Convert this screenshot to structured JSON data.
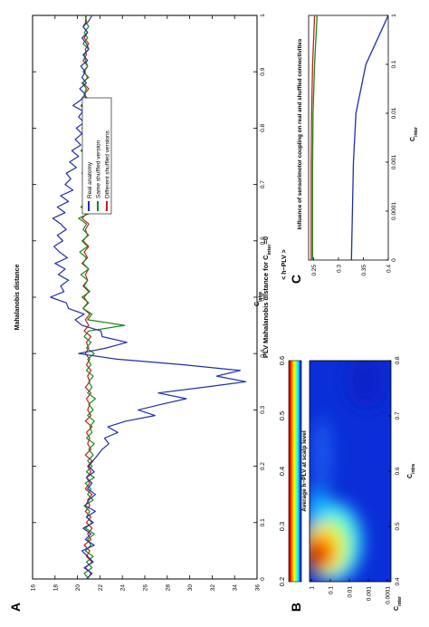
{
  "panels": {
    "A": {
      "letter": "A",
      "title_main": "PLV Mahalanobis distance for C",
      "title_sub": "inter",
      "title_tail": "=0",
      "xlabel_main": "C",
      "xlabel_sub": "intra",
      "ylabel": "Mahalanobis distance",
      "legend": [
        "Real anatomy",
        "Same shuffled version",
        "Different shuffled versions"
      ]
    },
    "B": {
      "letter": "B",
      "title": "Average h−PLV at scalp level",
      "xlabel_main": "C",
      "xlabel_sub": "intra",
      "ylabel_main": "C",
      "ylabel_sub": "inter",
      "colorbar_ticks": [
        "0.6",
        "0.5",
        "0.4",
        "0.3",
        "0.2"
      ]
    },
    "C": {
      "letter": "C",
      "title": "Influence of sensorimotor coupling on real and shuffled connectivities",
      "xlabel_main": "C",
      "xlabel_sub": "inter",
      "ylabel": "< h−PLV >"
    }
  },
  "colors": {
    "real": "#1f2fa8",
    "same": "#1a8a1a",
    "different": "#c0201a"
  },
  "chart_data": [
    {
      "type": "line",
      "panel": "A",
      "title": "PLV Mahalanobis distance for C_inter=0",
      "xlabel": "C_intra",
      "ylabel": "Mahalanobis distance",
      "xlim": [
        0,
        1
      ],
      "ylim": [
        16,
        36
      ],
      "xticks": [
        "0",
        "0.1",
        "0.2",
        "0.3",
        "0.4",
        "0.5",
        "0.6",
        "0.7",
        "0.8",
        "0.9",
        "1"
      ],
      "yticks": [
        "16",
        "18",
        "20",
        "22",
        "24",
        "26",
        "28",
        "30",
        "32",
        "34",
        "36"
      ],
      "x": [
        0,
        0.01,
        0.02,
        0.03,
        0.04,
        0.05,
        0.06,
        0.07,
        0.08,
        0.09,
        0.1,
        0.11,
        0.12,
        0.13,
        0.14,
        0.15,
        0.16,
        0.17,
        0.18,
        0.19,
        0.2,
        0.21,
        0.22,
        0.23,
        0.24,
        0.25,
        0.26,
        0.27,
        0.28,
        0.29,
        0.3,
        0.31,
        0.32,
        0.33,
        0.34,
        0.35,
        0.36,
        0.37,
        0.38,
        0.39,
        0.4,
        0.41,
        0.42,
        0.43,
        0.44,
        0.45,
        0.46,
        0.47,
        0.48,
        0.49,
        0.5,
        0.51,
        0.52,
        0.53,
        0.54,
        0.55,
        0.56,
        0.57,
        0.58,
        0.59,
        0.6,
        0.61,
        0.62,
        0.63,
        0.64,
        0.65,
        0.66,
        0.67,
        0.68,
        0.69,
        0.7,
        0.71,
        0.72,
        0.73,
        0.74,
        0.75,
        0.76,
        0.77,
        0.78,
        0.79,
        0.8,
        0.81,
        0.82,
        0.83,
        0.84,
        0.85,
        0.86,
        0.87,
        0.88,
        0.89,
        0.9,
        0.91,
        0.92,
        0.93,
        0.94,
        0.95,
        0.96,
        0.97,
        0.98,
        0.99,
        1
      ],
      "series": [
        {
          "name": "Real anatomy",
          "color": "#1f2fa8",
          "values": [
            20.8,
            21.3,
            20.6,
            21.4,
            20.9,
            20.4,
            21.5,
            20.7,
            21.2,
            20.5,
            21.4,
            20.8,
            21.6,
            20.7,
            21.0,
            21.6,
            20.9,
            21.3,
            20.8,
            21.5,
            21.0,
            21.4,
            21.8,
            22.2,
            22.8,
            22.4,
            23.6,
            22.7,
            24.3,
            26.9,
            25.4,
            27.5,
            29.7,
            27.2,
            31.2,
            35.0,
            32.4,
            34.5,
            29.5,
            23.5,
            20.1,
            22.6,
            24.4,
            22.2,
            22.1,
            20.4,
            19.8,
            20.6,
            19.2,
            19.0,
            17.6,
            18.8,
            18.5,
            19.2,
            18.3,
            18.9,
            18.0,
            19.1,
            18.4,
            17.9,
            18.7,
            18.2,
            19.0,
            18.5,
            17.8,
            18.9,
            18.2,
            19.2,
            18.5,
            19.6,
            18.9,
            19.4,
            19.0,
            19.9,
            19.3,
            20.1,
            19.5,
            20.3,
            19.8,
            20.4,
            19.9,
            20.6,
            20.1,
            20.5,
            19.6,
            20.3,
            20.7,
            20.2,
            20.8,
            20.4,
            20.7,
            20.3,
            20.9,
            20.5,
            21.0,
            20.8,
            20.4,
            20.9,
            20.5,
            21.0,
            21.3
          ]
        },
        {
          "name": "Same shuffled version",
          "color": "#1a8a1a",
          "values": [
            21.0,
            20.6,
            21.3,
            20.8,
            21.4,
            20.7,
            21.2,
            20.9,
            21.5,
            20.7,
            21.3,
            20.8,
            21.1,
            20.6,
            21.4,
            20.9,
            21.2,
            20.7,
            21.5,
            20.8,
            21.3,
            20.9,
            21.4,
            21.0,
            21.5,
            20.8,
            21.3,
            21.1,
            21.5,
            20.9,
            21.4,
            21.0,
            21.6,
            20.9,
            21.3,
            21.0,
            21.4,
            20.8,
            21.2,
            20.9,
            21.5,
            20.8,
            21.2,
            20.6,
            21.0,
            24.2,
            20.9,
            21.3,
            20.5,
            21.0,
            20.4,
            21.1,
            20.6,
            20.9,
            20.3,
            21.0,
            20.5,
            20.8,
            20.2,
            20.9,
            20.4,
            21.0,
            20.5,
            20.8,
            20.1,
            21.2,
            20.3,
            21.0,
            20.6,
            20.9,
            20.5,
            21.1,
            20.4,
            20.9,
            20.6,
            21.0,
            20.3,
            21.1,
            20.5,
            20.9,
            20.4,
            21.2,
            20.5,
            20.8,
            20.3,
            21.0,
            20.6,
            20.8,
            20.4,
            21.0,
            20.5,
            20.9,
            20.7,
            20.6,
            21.0,
            20.5,
            20.9,
            20.6,
            21.0,
            20.7,
            20.8
          ]
        },
        {
          "name": "Different shuffled versions",
          "color": "#c0201a",
          "values": [
            20.9,
            21.2,
            20.7,
            21.3,
            20.8,
            21.1,
            20.6,
            21.2,
            20.9,
            21.3,
            20.8,
            21.2,
            20.7,
            21.1,
            20.9,
            21.3,
            20.7,
            21.1,
            20.8,
            21.2,
            20.9,
            21.3,
            20.7,
            21.2,
            20.9,
            21.1,
            20.8,
            21.3,
            20.7,
            21.2,
            20.9,
            21.1,
            20.8,
            21.2,
            20.7,
            21.1,
            20.9,
            21.2,
            20.8,
            21.1,
            20.7,
            21.0,
            20.8,
            21.2,
            20.6,
            21.0,
            20.7,
            21.1,
            20.5,
            20.9,
            20.6,
            21.0,
            20.5,
            20.9,
            20.7,
            21.0,
            20.4,
            20.9,
            20.6,
            21.0,
            20.5,
            20.9,
            20.7,
            21.0,
            20.4,
            20.9,
            20.6,
            21.0,
            20.5,
            20.8,
            20.7,
            21.0,
            20.4,
            20.9,
            20.6,
            21.0,
            20.5,
            20.8,
            20.7,
            21.0,
            20.5,
            20.9,
            20.6,
            21.0,
            20.4,
            20.8,
            20.6,
            21.0,
            20.5,
            20.9,
            20.6,
            20.9,
            20.5,
            20.8,
            20.7,
            21.0,
            20.6,
            20.9,
            20.5,
            20.8,
            20.7
          ]
        }
      ],
      "legend_position": "upper-middle",
      "grid": false
    },
    {
      "type": "heatmap",
      "panel": "B",
      "title": "Average h−PLV at scalp level",
      "xlabel": "C_intra",
      "ylabel": "C_inter",
      "xticks": [
        "0.4",
        "0.5",
        "0.6",
        "0.7",
        "0.8"
      ],
      "xlim": [
        0.4,
        0.8
      ],
      "yticks": [
        "0.0001",
        "0.001",
        "0.01",
        "0.1",
        "1"
      ],
      "colorbar_ticks": [
        "0.6",
        "0.5",
        "0.4",
        "0.3",
        "0.2"
      ],
      "clim": [
        0.2,
        0.6
      ],
      "description_values": "high (~0.6) near C_intra=0.4 and C_inter around 0.01–1, decreasing to ~0.2 for C_intra above ~0.55"
    },
    {
      "type": "line",
      "panel": "C",
      "title": "Influence of sensorimotor coupling on real and shuffled connectivities",
      "xlabel": "C_inter",
      "ylabel": "< h−PLV >",
      "xscale": "log",
      "xticks": [
        "0",
        "0.0001",
        "0.001",
        "0.01",
        "0.1",
        "1"
      ],
      "x": [
        "0",
        "0.0001",
        "0.001",
        "0.01",
        "0.1",
        "1"
      ],
      "ylim": [
        0.24,
        0.4
      ],
      "yticks": [
        "0.4",
        "0.35",
        "0.3",
        "0.25"
      ],
      "series": [
        {
          "name": "",
          "color": "#1f2fa8",
          "values": [
            0.326,
            0.328,
            0.33,
            0.335,
            0.355,
            0.4
          ]
        },
        {
          "name": "",
          "color": "#1a8a1a",
          "values": [
            0.248,
            0.248,
            0.248,
            0.249,
            0.252,
            0.257
          ]
        },
        {
          "name": "",
          "color": "#c0201a",
          "values": [
            0.245,
            0.245,
            0.245,
            0.246,
            0.248,
            0.252
          ]
        }
      ]
    }
  ]
}
